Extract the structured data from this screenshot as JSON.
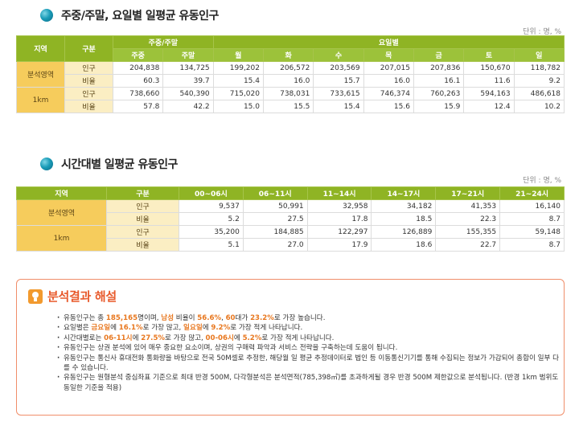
{
  "section1": {
    "title": "주중/주말, 요일별 일평균 유동인구",
    "unit": "단위 : 명, %",
    "headers": {
      "region": "지역",
      "kind": "구분",
      "group_weekday": "주중/주말",
      "group_day": "요일별",
      "cols": [
        "주중",
        "주말",
        "월",
        "화",
        "수",
        "목",
        "금",
        "토",
        "일"
      ]
    },
    "rows": [
      {
        "region": "분석영역",
        "kind": "인구",
        "values": [
          "204,838",
          "134,725",
          "199,202",
          "206,572",
          "203,569",
          "207,015",
          "207,836",
          "150,670",
          "118,782"
        ]
      },
      {
        "region": "",
        "kind": "비율",
        "values": [
          "60.3",
          "39.7",
          "15.4",
          "16.0",
          "15.7",
          "16.0",
          "16.1",
          "11.6",
          "9.2"
        ]
      },
      {
        "region": "1km",
        "kind": "인구",
        "values": [
          "738,660",
          "540,390",
          "715,020",
          "738,031",
          "733,615",
          "746,374",
          "760,263",
          "594,163",
          "486,618"
        ]
      },
      {
        "region": "",
        "kind": "비율",
        "values": [
          "57.8",
          "42.2",
          "15.0",
          "15.5",
          "15.4",
          "15.6",
          "15.9",
          "12.4",
          "10.2"
        ]
      }
    ]
  },
  "section2": {
    "title": "시간대별 일평균 유동인구",
    "unit": "단위 : 명, %",
    "headers": {
      "region": "지역",
      "kind": "구분",
      "cols": [
        "00~06시",
        "06~11시",
        "11~14시",
        "14~17시",
        "17~21시",
        "21~24시"
      ]
    },
    "rows": [
      {
        "region": "분석영역",
        "kind": "인구",
        "values": [
          "9,537",
          "50,991",
          "32,958",
          "34,182",
          "41,353",
          "16,140"
        ]
      },
      {
        "region": "",
        "kind": "비율",
        "values": [
          "5.2",
          "27.5",
          "17.8",
          "18.5",
          "22.3",
          "8.7"
        ]
      },
      {
        "region": "1km",
        "kind": "인구",
        "values": [
          "35,200",
          "184,885",
          "122,297",
          "126,889",
          "155,355",
          "59,148"
        ]
      },
      {
        "region": "",
        "kind": "비율",
        "values": [
          "5.1",
          "27.0",
          "17.9",
          "18.6",
          "22.7",
          "8.7"
        ]
      }
    ]
  },
  "result": {
    "title": "분석결과 해설",
    "items": [
      {
        "segments": [
          {
            "t": "유동인구는 총 "
          },
          {
            "t": "185,165",
            "hl": true
          },
          {
            "t": "명이며, "
          },
          {
            "t": "남성",
            "hl": true
          },
          {
            "t": " 비율이 "
          },
          {
            "t": "56.6%",
            "hl": true
          },
          {
            "t": ", "
          },
          {
            "t": "60",
            "hl": true
          },
          {
            "t": "대가 "
          },
          {
            "t": "23.2%",
            "hl": true
          },
          {
            "t": "로 가장 높습니다."
          }
        ]
      },
      {
        "segments": [
          {
            "t": "요일별은 "
          },
          {
            "t": "금요일",
            "hl": true
          },
          {
            "t": "에 "
          },
          {
            "t": "16.1%",
            "hl": true
          },
          {
            "t": "로 가장 많고, "
          },
          {
            "t": "일요일",
            "hl": true
          },
          {
            "t": "에 "
          },
          {
            "t": "9.2%",
            "hl": true
          },
          {
            "t": "로 가장 적게 나타납니다."
          }
        ]
      },
      {
        "segments": [
          {
            "t": "시간대별로는 "
          },
          {
            "t": "06-11시",
            "hl": true
          },
          {
            "t": "에 "
          },
          {
            "t": "27.5%",
            "hl": true
          },
          {
            "t": "로 가장 많고, "
          },
          {
            "t": "00-06시",
            "hl": true
          },
          {
            "t": "에 "
          },
          {
            "t": "5.2%",
            "hl": true
          },
          {
            "t": "로 가장 적게 나타납니다."
          }
        ]
      },
      {
        "segments": [
          {
            "t": "유동인구는 상권 분석에 있어 매우 중요한 요소이며, 상권의 구매력 파악과 서비스 전략을 구축하는데 도움이 됩니다."
          }
        ]
      },
      {
        "segments": [
          {
            "t": "유동인구는 통신사 휴대전화 통화량을 바탕으로 전국 50M셀로 추정한, 해당월 일 평균 추정데이터로 법인 등 이동통신기기를 통해 수집되는 정보가 가감되어 총합이 일부 다를 수 있습니다."
          }
        ]
      },
      {
        "segments": [
          {
            "t": "유동인구는 원형분석 중심좌표 기준으로 최대 반경 500M, 다각형분석은 분석면적(785,398㎡)를 초과하게될 경우 반경 500M 제한값으로 분석됩니다. (반경 1km 범위도 동일한 기준을 적용)"
          }
        ]
      }
    ]
  },
  "colors": {
    "header_green": "#8fb424",
    "region_yellow": "#f6cc5c",
    "kind_cream": "#fbeec3",
    "highlight_orange": "#e8771e",
    "result_title": "#e85a2c"
  }
}
